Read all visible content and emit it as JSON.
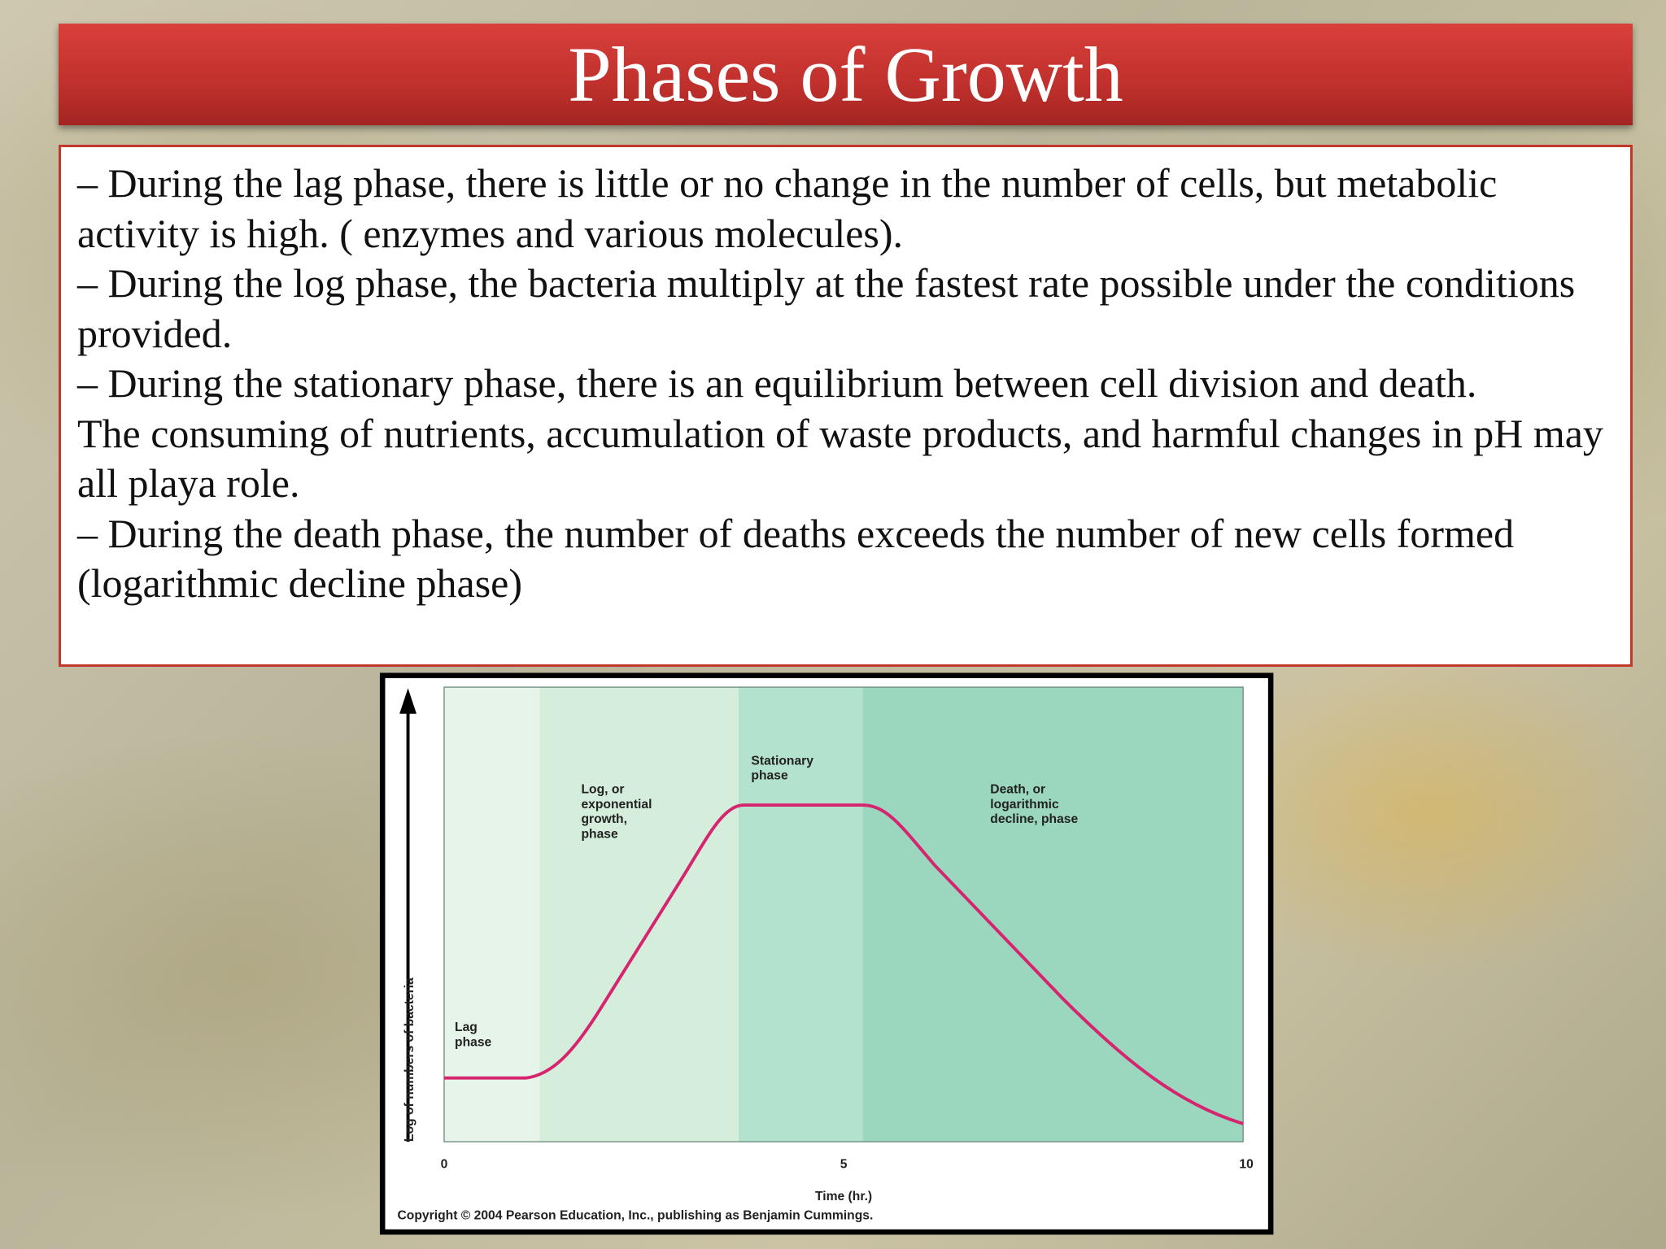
{
  "header": {
    "title": "Phases of Growth"
  },
  "body": {
    "paragraphs": [
      "– During the lag phase, there is little or no change in the number of cells, but metabolic activity is high.  ( enzymes and various molecules).",
      "– During the log phase, the bacteria multiply at the fastest rate possible under the conditions provided.",
      "– During the stationary phase, there is an equilibrium between cell division and death.",
      "The consuming of nutrients, accumulation of waste products, and harmful changes in pH may all playa role.",
      "– During the death phase, the number of deaths exceeds the number of new cells formed (logarithmic decline phase)"
    ]
  },
  "figure": {
    "phases": [
      {
        "lines": [
          "Lag",
          "phase"
        ]
      },
      {
        "lines": [
          "Log, or",
          "exponential",
          "growth,",
          "phase"
        ]
      },
      {
        "lines": [
          "Stationary",
          "phase"
        ]
      },
      {
        "lines": [
          "Death, or",
          "logarithmic",
          "decline, phase"
        ]
      }
    ],
    "x_ticks": [
      "0",
      "5",
      "10"
    ],
    "x_label": "Time (hr.)",
    "y_label": "Log of numbers of bacteria",
    "copyright": "Copyright © 2004 Pearson Education, Inc., publishing as Benjamin Cummings."
  }
}
